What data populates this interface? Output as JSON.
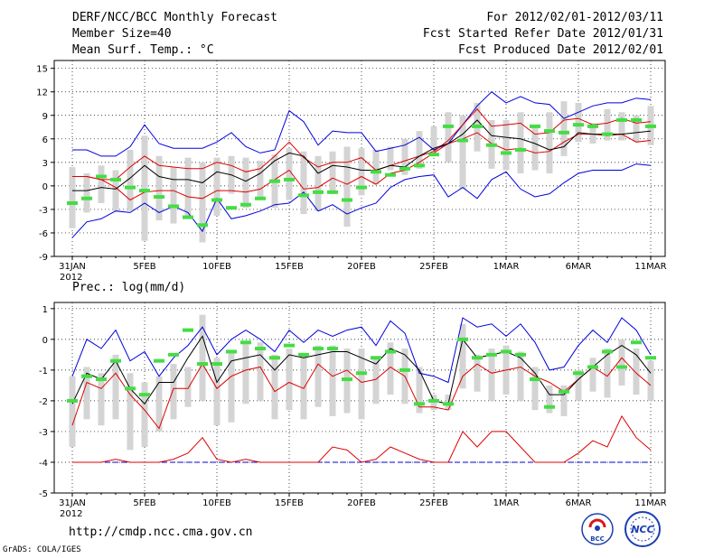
{
  "header": {
    "title": "DERF/NCC/BCC Monthly Forecast",
    "member_size": "Member Size=40",
    "variable": "Mean Surf. Temp.: °C",
    "period": "For 2012/02/01-2012/03/11",
    "start_ref": "Fcst Started Refer Date 2012/01/31",
    "produced": "Fcst Produced Date 2012/02/01"
  },
  "footer": {
    "url": "http://cmdp.ncc.cma.gov.cn",
    "credit": "GrADS: COLA/IGES",
    "logo_bcc": "BCC",
    "logo_ncc": "NCC"
  },
  "colors": {
    "envelope": "#0000dd",
    "quartile": "#dd0000",
    "median": "#000000",
    "mean_marker": "#44dd44",
    "box": "#d4d4d4"
  },
  "chart_data": [
    {
      "type": "box-line",
      "name": "temperature",
      "title": "Mean Surf. Temp.: °C",
      "ylabel": "°C",
      "ylim": [
        -9,
        16
      ],
      "yticks": [
        15,
        12,
        9,
        6,
        3,
        0,
        -3,
        -6,
        -9
      ],
      "x_count": 41,
      "xticks": [
        {
          "i": 0,
          "label": "31JAN",
          "sub": "2012"
        },
        {
          "i": 5,
          "label": "5FEB"
        },
        {
          "i": 10,
          "label": "10FEB"
        },
        {
          "i": 15,
          "label": "15FEB"
        },
        {
          "i": 20,
          "label": "20FEB"
        },
        {
          "i": 25,
          "label": "25FEB"
        },
        {
          "i": 30,
          "label": "1MAR"
        },
        {
          "i": 35,
          "label": "6MAR"
        },
        {
          "i": 40,
          "label": "11MAR"
        }
      ],
      "blue_top": [
        4.6,
        4.6,
        3.8,
        3.8,
        5.0,
        7.8,
        5.4,
        4.8,
        4.8,
        4.8,
        5.6,
        6.8,
        5.0,
        4.2,
        4.6,
        9.6,
        8.2,
        5.2,
        7.0,
        6.8,
        6.8,
        4.4,
        4.8,
        5.2,
        6.2,
        4.6,
        5.4,
        7.8,
        10.2,
        12.0,
        10.6,
        11.4,
        10.6,
        10.4,
        8.6,
        9.4,
        10.2,
        10.6,
        10.6,
        11.2,
        11.0
      ],
      "red_top": [
        1.2,
        1.2,
        0.8,
        0.8,
        2.4,
        3.8,
        2.6,
        2.4,
        2.2,
        2.2,
        3.0,
        2.6,
        1.8,
        2.2,
        3.8,
        5.6,
        3.6,
        2.4,
        3.0,
        3.0,
        3.6,
        2.0,
        2.6,
        3.2,
        3.8,
        4.4,
        5.8,
        7.8,
        9.8,
        7.6,
        7.8,
        8.0,
        6.6,
        6.8,
        8.4,
        8.6,
        7.8,
        8.0,
        8.6,
        8.0,
        8.2
      ],
      "median": [
        -0.6,
        -0.6,
        -0.2,
        -0.4,
        1.0,
        2.6,
        1.2,
        0.8,
        0.8,
        0.4,
        1.8,
        1.4,
        0.6,
        1.6,
        3.2,
        4.2,
        3.8,
        1.6,
        2.6,
        2.4,
        2.0,
        2.0,
        2.6,
        2.4,
        3.8,
        4.8,
        5.4,
        6.6,
        8.4,
        6.4,
        6.2,
        6.0,
        5.4,
        4.6,
        5.0,
        6.8,
        6.6,
        6.6,
        6.6,
        6.8,
        7.0
      ],
      "red_bottom": [
        1.2,
        1.2,
        0.8,
        -0.2,
        -1.8,
        -0.8,
        -0.6,
        -0.6,
        -1.4,
        -1.6,
        -0.6,
        -0.6,
        -0.8,
        -0.4,
        0.8,
        2.0,
        -0.4,
        -0.2,
        1.0,
        0.2,
        1.2,
        0.2,
        1.6,
        2.0,
        3.0,
        4.2,
        5.4,
        6.0,
        6.8,
        5.4,
        4.6,
        4.8,
        4.2,
        4.4,
        5.6,
        6.6,
        6.6,
        6.4,
        6.6,
        5.6,
        5.8
      ],
      "blue_bottom": [
        -6.6,
        -4.6,
        -4.2,
        -3.2,
        -3.4,
        -2.2,
        -3.4,
        -2.6,
        -3.4,
        -5.8,
        -1.6,
        -4.2,
        -3.8,
        -3.2,
        -2.4,
        -2.2,
        -0.8,
        -3.2,
        -2.4,
        -3.6,
        -2.8,
        -2.2,
        -0.2,
        0.8,
        1.2,
        1.4,
        -1.4,
        -0.2,
        -1.6,
        0.8,
        1.8,
        -0.4,
        -1.4,
        -1.0,
        0.4,
        1.6,
        2.0,
        2.0,
        2.0,
        2.8,
        2.6
      ],
      "box_top": [
        2.4,
        1.6,
        2.6,
        2.0,
        4.6,
        6.4,
        3.8,
        2.4,
        3.6,
        3.0,
        3.6,
        3.8,
        3.6,
        3.2,
        4.0,
        4.8,
        4.4,
        3.8,
        4.4,
        5.0,
        4.8,
        4.6,
        5.0,
        6.0,
        7.0,
        7.6,
        9.4,
        9.0,
        10.6,
        8.4,
        8.4,
        9.4,
        7.6,
        9.4,
        10.8,
        10.6,
        8.0,
        9.8,
        9.4,
        9.0,
        10.2
      ],
      "box_bottom": [
        -5.4,
        -3.4,
        -2.2,
        -3.2,
        -3.2,
        -7.0,
        -4.4,
        -4.8,
        -4.0,
        -7.2,
        -3.8,
        -1.0,
        -2.8,
        -1.8,
        -2.8,
        -1.8,
        -3.6,
        -3.2,
        -1.0,
        -5.2,
        -1.2,
        0.2,
        2.0,
        1.4,
        2.2,
        4.4,
        3.0,
        -0.4,
        4.4,
        2.2,
        2.0,
        1.6,
        2.0,
        1.6,
        3.8,
        5.6,
        5.4,
        5.8,
        5.8,
        5.6,
        5.2
      ],
      "mean_marker": [
        -2.2,
        -1.6,
        1.2,
        0.8,
        -0.2,
        -0.6,
        -1.4,
        -2.6,
        -4.0,
        -5.0,
        -1.8,
        -2.8,
        -2.4,
        -1.6,
        0.6,
        0.8,
        -1.2,
        -0.8,
        -0.8,
        -1.8,
        -0.2,
        1.8,
        1.4,
        2.2,
        2.6,
        4.0,
        7.6,
        5.8,
        7.6,
        5.2,
        4.2,
        4.6,
        7.6,
        7.0,
        6.8,
        7.8,
        7.6,
        6.6,
        8.4,
        8.4,
        7.6
      ]
    },
    {
      "type": "box-line",
      "name": "precipitation",
      "title": "Prec.: log(mm/d)",
      "ylabel": "log(mm/d)",
      "ylim": [
        -5,
        1.2
      ],
      "yticks": [
        1,
        0,
        -1,
        -2,
        -3,
        -4,
        -5
      ],
      "x_count": 41,
      "xticks": [
        {
          "i": 0,
          "label": "31JAN",
          "sub": "2012"
        },
        {
          "i": 5,
          "label": "5FEB"
        },
        {
          "i": 10,
          "label": "10FEB"
        },
        {
          "i": 15,
          "label": "15FEB"
        },
        {
          "i": 20,
          "label": "20FEB"
        },
        {
          "i": 25,
          "label": "25FEB"
        },
        {
          "i": 30,
          "label": "1MAR"
        },
        {
          "i": 35,
          "label": "6MAR"
        },
        {
          "i": 40,
          "label": "11MAR"
        }
      ],
      "blue_top": [
        -1.2,
        0.0,
        -0.3,
        0.3,
        -0.7,
        -0.4,
        -1.2,
        -0.6,
        -0.2,
        0.4,
        -0.5,
        0.0,
        0.3,
        0.0,
        -0.4,
        0.3,
        -0.1,
        0.3,
        0.1,
        0.3,
        0.4,
        -0.2,
        0.6,
        0.2,
        -1.1,
        -1.2,
        -1.4,
        0.7,
        0.4,
        0.5,
        0.1,
        0.5,
        -0.1,
        -1.0,
        -0.9,
        -0.2,
        0.3,
        -0.1,
        0.7,
        0.3,
        -0.5
      ],
      "red_top": [
        -2.8,
        -1.4,
        -1.6,
        -1.1,
        -1.8,
        -2.3,
        -2.9,
        -1.6,
        -1.6,
        -0.8,
        -1.6,
        -1.2,
        -1.0,
        -0.9,
        -1.7,
        -1.4,
        -1.6,
        -0.8,
        -1.2,
        -1.0,
        -1.4,
        -1.3,
        -0.9,
        -1.2,
        -2.2,
        -2.2,
        -2.3,
        -1.2,
        -0.8,
        -1.1,
        -1.0,
        -0.9,
        -1.2,
        -1.4,
        -1.7,
        -1.3,
        -0.9,
        -1.2,
        -0.6,
        -1.1,
        -1.5
      ],
      "median": [
        -2.1,
        -1.1,
        -1.3,
        -0.7,
        -1.6,
        -2.1,
        -1.4,
        -1.4,
        -0.6,
        0.1,
        -1.4,
        -0.7,
        -0.6,
        -0.5,
        -1.0,
        -0.5,
        -0.6,
        -0.5,
        -0.4,
        -0.4,
        -0.6,
        -0.8,
        -0.3,
        -0.5,
        -1.0,
        -2.0,
        -2.1,
        0.0,
        -0.6,
        -0.5,
        -0.4,
        -0.6,
        -1.1,
        -1.8,
        -1.8,
        -1.3,
        -0.9,
        -0.5,
        -0.2,
        -0.5,
        -1.1
      ],
      "red_bottom": [
        -4.0,
        -4.0,
        -4.0,
        -3.9,
        -4.0,
        -4.0,
        -4.0,
        -3.9,
        -3.7,
        -3.2,
        -3.9,
        -4.0,
        -3.9,
        -4.0,
        -4.0,
        -4.0,
        -4.0,
        -4.0,
        -3.5,
        -3.6,
        -4.0,
        -3.9,
        -3.5,
        -3.7,
        -3.9,
        -4.0,
        -4.0,
        -3.0,
        -3.5,
        -3.0,
        -3.0,
        -3.5,
        -4.0,
        -4.0,
        -4.0,
        -3.7,
        -3.3,
        -3.5,
        -2.5,
        -3.2,
        -3.6
      ],
      "blue_bottom": [
        -4.0,
        -4.0,
        -4.0,
        -4.0,
        -4.0,
        -4.0,
        -4.0,
        -4.0,
        -4.0,
        -4.0,
        -4.0,
        -4.0,
        -4.0,
        -4.0,
        -4.0,
        -4.0,
        -4.0,
        -4.0,
        -4.0,
        -4.0,
        -4.0,
        -4.0,
        -4.0,
        -4.0,
        -4.0,
        -4.0,
        -4.0,
        -4.0,
        -4.0,
        -4.0,
        -4.0,
        -4.0,
        -4.0,
        -4.0,
        -4.0,
        -4.0,
        -4.0,
        -4.0,
        -4.0,
        -4.0,
        -4.0
      ],
      "box_top": [
        -1.2,
        -0.9,
        -1.1,
        -0.5,
        -1.1,
        -1.4,
        -1.2,
        -0.8,
        -0.9,
        0.8,
        -0.6,
        -0.4,
        -0.1,
        -0.1,
        -0.5,
        -0.3,
        -0.5,
        -0.2,
        -0.2,
        -0.3,
        -0.3,
        -0.6,
        -0.1,
        -0.3,
        -0.9,
        -1.8,
        -1.8,
        0.5,
        -0.5,
        -0.3,
        -0.2,
        -0.4,
        -0.9,
        -1.5,
        -1.5,
        -1.0,
        -0.6,
        -0.3,
        0.0,
        -0.3,
        -0.7
      ],
      "box_bottom": [
        -3.5,
        -2.6,
        -2.8,
        -2.6,
        -3.6,
        -3.5,
        -3.0,
        -2.6,
        -2.2,
        -2.0,
        -2.8,
        -2.7,
        -2.1,
        -2.0,
        -2.6,
        -2.3,
        -2.6,
        -2.2,
        -2.5,
        -2.4,
        -2.6,
        -2.1,
        -1.8,
        -2.1,
        -2.4,
        -2.3,
        -2.3,
        -1.6,
        -1.7,
        -2.0,
        -1.8,
        -2.0,
        -2.3,
        -2.4,
        -2.5,
        -2.0,
        -1.7,
        -1.9,
        -1.5,
        -1.8,
        -2.0
      ],
      "mean_marker": [
        -2.0,
        -1.2,
        -1.3,
        -0.7,
        -1.6,
        -1.8,
        -0.7,
        -0.5,
        0.3,
        -0.8,
        -0.8,
        -0.4,
        -0.1,
        -0.3,
        -0.6,
        -0.2,
        -0.5,
        -0.3,
        -0.3,
        -1.3,
        -1.1,
        -0.6,
        -0.4,
        -1.0,
        -2.1,
        -2.0,
        -2.1,
        0.0,
        -0.6,
        -0.5,
        -0.4,
        -0.5,
        -1.3,
        -2.2,
        -1.7,
        -1.1,
        -0.9,
        -0.4,
        -0.9,
        -0.1,
        -0.6
      ]
    }
  ]
}
